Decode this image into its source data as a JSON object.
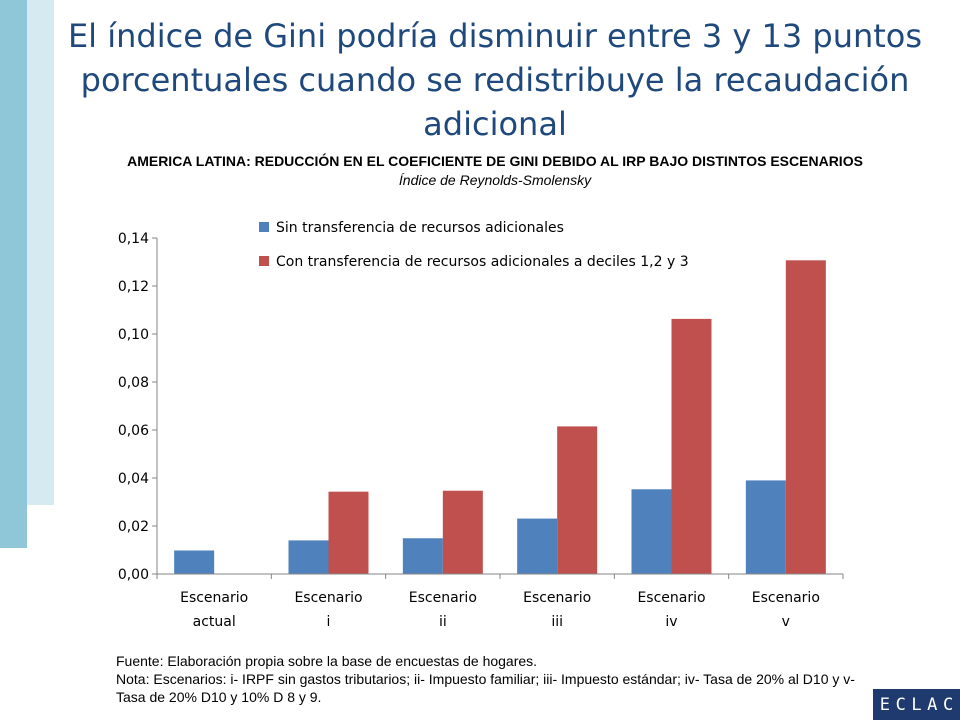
{
  "title": "El índice de Gini podría disminuir entre 3 y 13 puntos porcentuales cuando se redistribuye la recaudación adicional",
  "logo": {
    "letters": [
      "E",
      "C",
      "L",
      "A",
      "C"
    ]
  },
  "notes": {
    "source": "Fuente: Elaboración propia sobre la base de encuestas de hogares.",
    "note": "Nota: Escenarios: i- IRPF sin gastos tributarios; ii- Impuesto familiar; iii- Impuesto estándar; iv- Tasa de 20% al D10 y v- Tasa de 20% D10 y 10% D 8 y 9."
  },
  "chart_data": {
    "type": "bar",
    "title": "AMERICA LATINA: REDUCCIÓN EN EL COEFICIENTE DE GINI DEBIDO AL IRP BAJO DISTINTOS ESCENARIOS",
    "subtitle": "Índice de Reynolds-Smolensky",
    "categories": [
      [
        "Escenario",
        "actual"
      ],
      [
        "Escenario",
        "i"
      ],
      [
        "Escenario",
        "ii"
      ],
      [
        "Escenario",
        "iii"
      ],
      [
        "Escenario",
        "iv"
      ],
      [
        "Escenario",
        "v"
      ]
    ],
    "series": [
      {
        "name": "Sin transferencia de recursos adicionales",
        "color": "#4f81bd",
        "values": [
          0.0098,
          0.014,
          0.0149,
          0.0231,
          0.0353,
          0.039
        ]
      },
      {
        "name": "Con transferencia de recursos adicionales a deciles 1,2 y 3",
        "color": "#c0504d",
        "values": [
          null,
          0.0343,
          0.0347,
          0.0615,
          0.1063,
          0.1307
        ]
      }
    ],
    "ylim": [
      0,
      0.14
    ],
    "yticks": [
      "0,00",
      "0,02",
      "0,04",
      "0,06",
      "0,08",
      "0,10",
      "0,12",
      "0,14"
    ],
    "xlabel": "",
    "ylabel": "",
    "grid": false,
    "legend": "top-left"
  }
}
